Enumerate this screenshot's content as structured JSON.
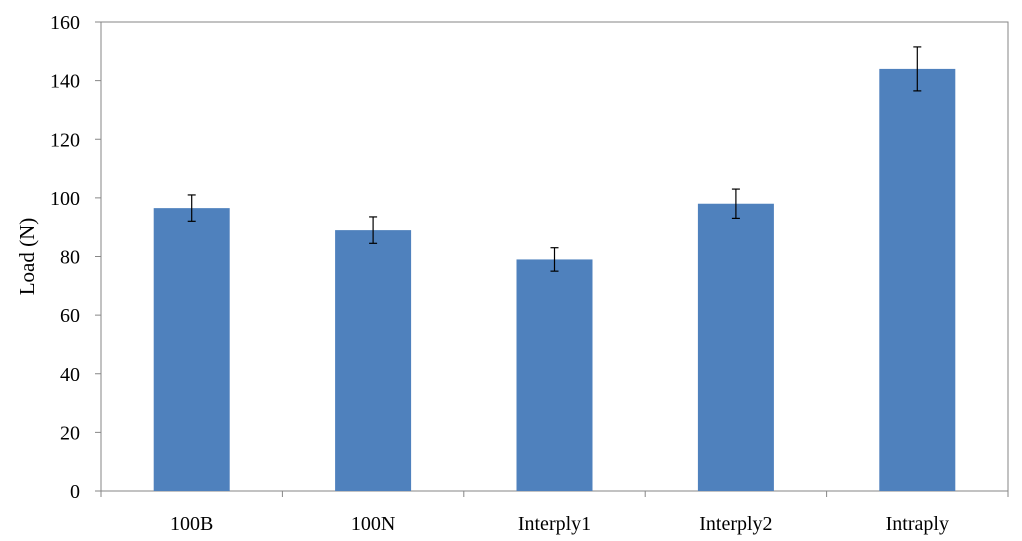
{
  "chart_data": {
    "type": "bar",
    "title": "",
    "xlabel": "",
    "ylabel": "Load (N)",
    "categories": [
      "100B",
      "100N",
      "Interply1",
      "Interply2",
      "Intraply"
    ],
    "values": [
      96.5,
      89,
      79,
      98,
      144
    ],
    "errors": [
      4.5,
      4.5,
      4,
      5,
      7.5
    ],
    "ylim": [
      0,
      160
    ],
    "yticks": [
      0,
      20,
      40,
      60,
      80,
      100,
      120,
      140,
      160
    ],
    "grid": false,
    "legend": "none",
    "bar_color": "#4f81bd"
  }
}
